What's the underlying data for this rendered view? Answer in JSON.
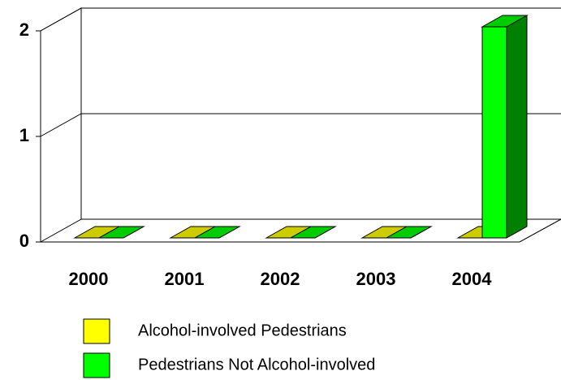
{
  "chart_data": {
    "type": "bar3d",
    "categories": [
      "2000",
      "2001",
      "2002",
      "2003",
      "2004"
    ],
    "series": [
      {
        "name": "Alcohol-involved Pedestrians",
        "color": "#ffff00",
        "values": [
          0,
          0,
          0,
          0,
          0
        ]
      },
      {
        "name": "Pedestrians Not Alcohol-involved",
        "color": "#00ff00",
        "values": [
          0,
          0,
          0,
          0,
          2
        ]
      }
    ],
    "ylim": [
      0,
      2
    ],
    "yticks": [
      0,
      1,
      2
    ],
    "grid": true
  }
}
